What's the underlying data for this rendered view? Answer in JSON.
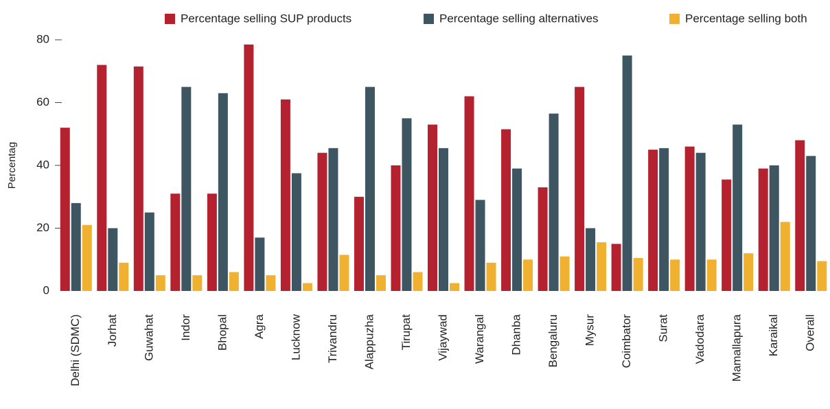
{
  "chart_data": {
    "type": "bar",
    "y_label": "Percentag",
    "categories": [
      "Delhi (SDMC)",
      "Jorhat",
      "Guwahat",
      "Indor",
      "Bhopal",
      "Agra",
      "Lucknow",
      "Trivandru",
      "Alappuzha",
      "Tirupat",
      "Vijaywad",
      "Warangal",
      "Dhanba",
      "Bengaluru",
      "Mysur",
      "Coimbator",
      "Surat",
      "Vadodara",
      "Mamallapura",
      "Karaikal",
      "Overall"
    ],
    "series": [
      {
        "name": "Percentage selling SUP products",
        "color": "#b5222f",
        "values": [
          52,
          72,
          71.5,
          31,
          31,
          78.5,
          61,
          44,
          30,
          40,
          53,
          62,
          51.5,
          33,
          65,
          15,
          45,
          46,
          35.5,
          39,
          48
        ]
      },
      {
        "name": "Percentage selling alternatives",
        "color": "#3e5562",
        "values": [
          28,
          20,
          25,
          65,
          63,
          17,
          37.5,
          45.5,
          65,
          55,
          45.5,
          29,
          39,
          56.5,
          20,
          75,
          45.5,
          44,
          53,
          40,
          43
        ]
      },
      {
        "name": "Percentage selling both",
        "color": "#f0b030",
        "values": [
          21,
          9,
          5,
          5,
          6,
          5,
          2.5,
          11.5,
          5,
          6,
          2.5,
          9,
          10,
          11,
          15.5,
          10.5,
          10,
          10,
          12,
          22,
          9.5
        ]
      }
    ],
    "ylim": [
      0,
      80
    ],
    "yticks": [
      0,
      20,
      40,
      60,
      80
    ],
    "legend": "top"
  }
}
